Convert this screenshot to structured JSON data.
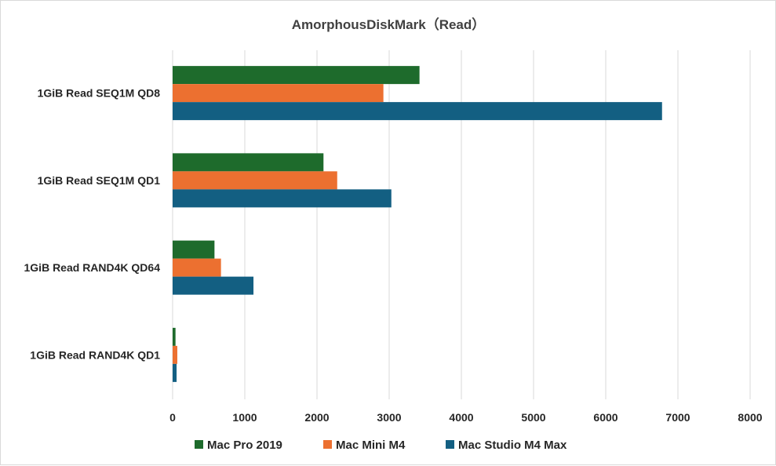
{
  "chart_data": {
    "type": "bar",
    "orientation": "horizontal",
    "title": "AmorphousDiskMark（Read）",
    "categories": [
      "1GiB Read SEQ1M QD8",
      "1GiB Read SEQ1M QD1",
      "1GiB Read RAND4K QD64",
      "1GiB Read RAND4K QD1"
    ],
    "series": [
      {
        "name": "Mac Pro 2019",
        "color": "#1e6b2c",
        "values": [
          3420,
          2090,
          580,
          40
        ]
      },
      {
        "name": "Mac Mini M4",
        "color": "#ec7030",
        "values": [
          2920,
          2280,
          670,
          65
        ]
      },
      {
        "name": "Mac Studio M4 Max",
        "color": "#135f82",
        "values": [
          6780,
          3030,
          1120,
          55
        ]
      }
    ],
    "xlim": [
      0,
      8000
    ],
    "xticks": [
      0,
      1000,
      2000,
      3000,
      4000,
      5000,
      6000,
      7000,
      8000
    ],
    "grid": true,
    "legend_position": "bottom"
  }
}
